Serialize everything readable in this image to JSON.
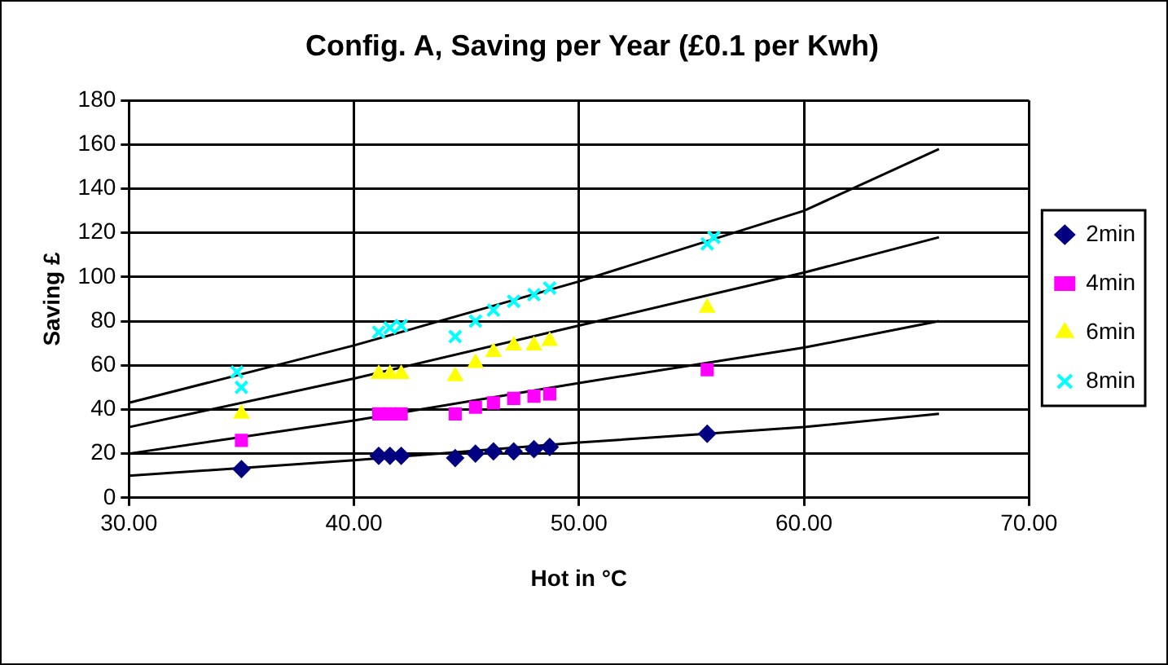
{
  "chart_data": {
    "type": "scatter",
    "title": "Config. A, Saving per Year (£0.1 per Kwh)",
    "xlabel": "Hot in °C",
    "ylabel": "Saving £",
    "xlim": [
      30,
      70
    ],
    "xticks": [
      {
        "value": 30,
        "label": "30.00"
      },
      {
        "value": 40,
        "label": "40.00"
      },
      {
        "value": 50,
        "label": "50.00"
      },
      {
        "value": 60,
        "label": "60.00"
      },
      {
        "value": 70,
        "label": "70.00"
      }
    ],
    "ylim": [
      0,
      180
    ],
    "yticks": [
      0,
      20,
      40,
      60,
      80,
      100,
      120,
      140,
      160,
      180
    ],
    "grid": true,
    "legend": "right",
    "series": [
      {
        "name": "2min",
        "color": "#000080",
        "marker": "diamond",
        "x": [
          35.0,
          41.1,
          41.6,
          42.1,
          44.5,
          45.4,
          46.2,
          47.1,
          48.0,
          48.7,
          55.7
        ],
        "values": [
          13,
          19,
          19,
          19,
          18,
          20,
          21,
          21,
          22,
          23,
          29
        ]
      },
      {
        "name": "4min",
        "color": "#ff00ff",
        "marker": "square",
        "x": [
          35.0,
          41.1,
          41.6,
          42.1,
          44.5,
          45.4,
          46.2,
          47.1,
          48.0,
          48.7,
          55.7
        ],
        "values": [
          26,
          38,
          38,
          38,
          38,
          41,
          43,
          45,
          46,
          47,
          58
        ]
      },
      {
        "name": "6min",
        "color": "#ffff00",
        "marker": "triangle",
        "x": [
          35.0,
          41.1,
          41.6,
          42.1,
          44.5,
          45.4,
          46.2,
          47.1,
          48.0,
          48.7,
          55.7
        ],
        "values": [
          38,
          56,
          56,
          56,
          55,
          61,
          66,
          69,
          69,
          71,
          86
        ]
      },
      {
        "name": "8min",
        "color": "#00ffff",
        "marker": "cross",
        "x": [
          34.8,
          35.0,
          41.1,
          41.6,
          42.1,
          44.5,
          45.4,
          46.2,
          47.1,
          48.0,
          48.7,
          55.7,
          56.0
        ],
        "values": [
          57,
          50,
          75,
          77,
          78,
          73,
          80,
          85,
          89,
          92,
          95,
          115,
          118
        ]
      },
      {
        "type": "line",
        "color": "#000000",
        "marker": "none",
        "x": [
          30,
          40,
          50,
          60,
          66
        ],
        "values": [
          10,
          17,
          25,
          32,
          38
        ]
      },
      {
        "type": "line",
        "color": "#000000",
        "marker": "none",
        "x": [
          30,
          40,
          50,
          60,
          66
        ],
        "values": [
          20,
          35,
          52,
          68,
          80
        ]
      },
      {
        "type": "line",
        "color": "#000000",
        "marker": "none",
        "x": [
          30,
          40,
          50,
          60,
          66
        ],
        "values": [
          32,
          54,
          78,
          102,
          118
        ]
      },
      {
        "type": "line",
        "color": "#000000",
        "marker": "none",
        "x": [
          30,
          40,
          50,
          60,
          66
        ],
        "values": [
          43,
          69,
          98,
          130,
          158
        ]
      }
    ]
  }
}
